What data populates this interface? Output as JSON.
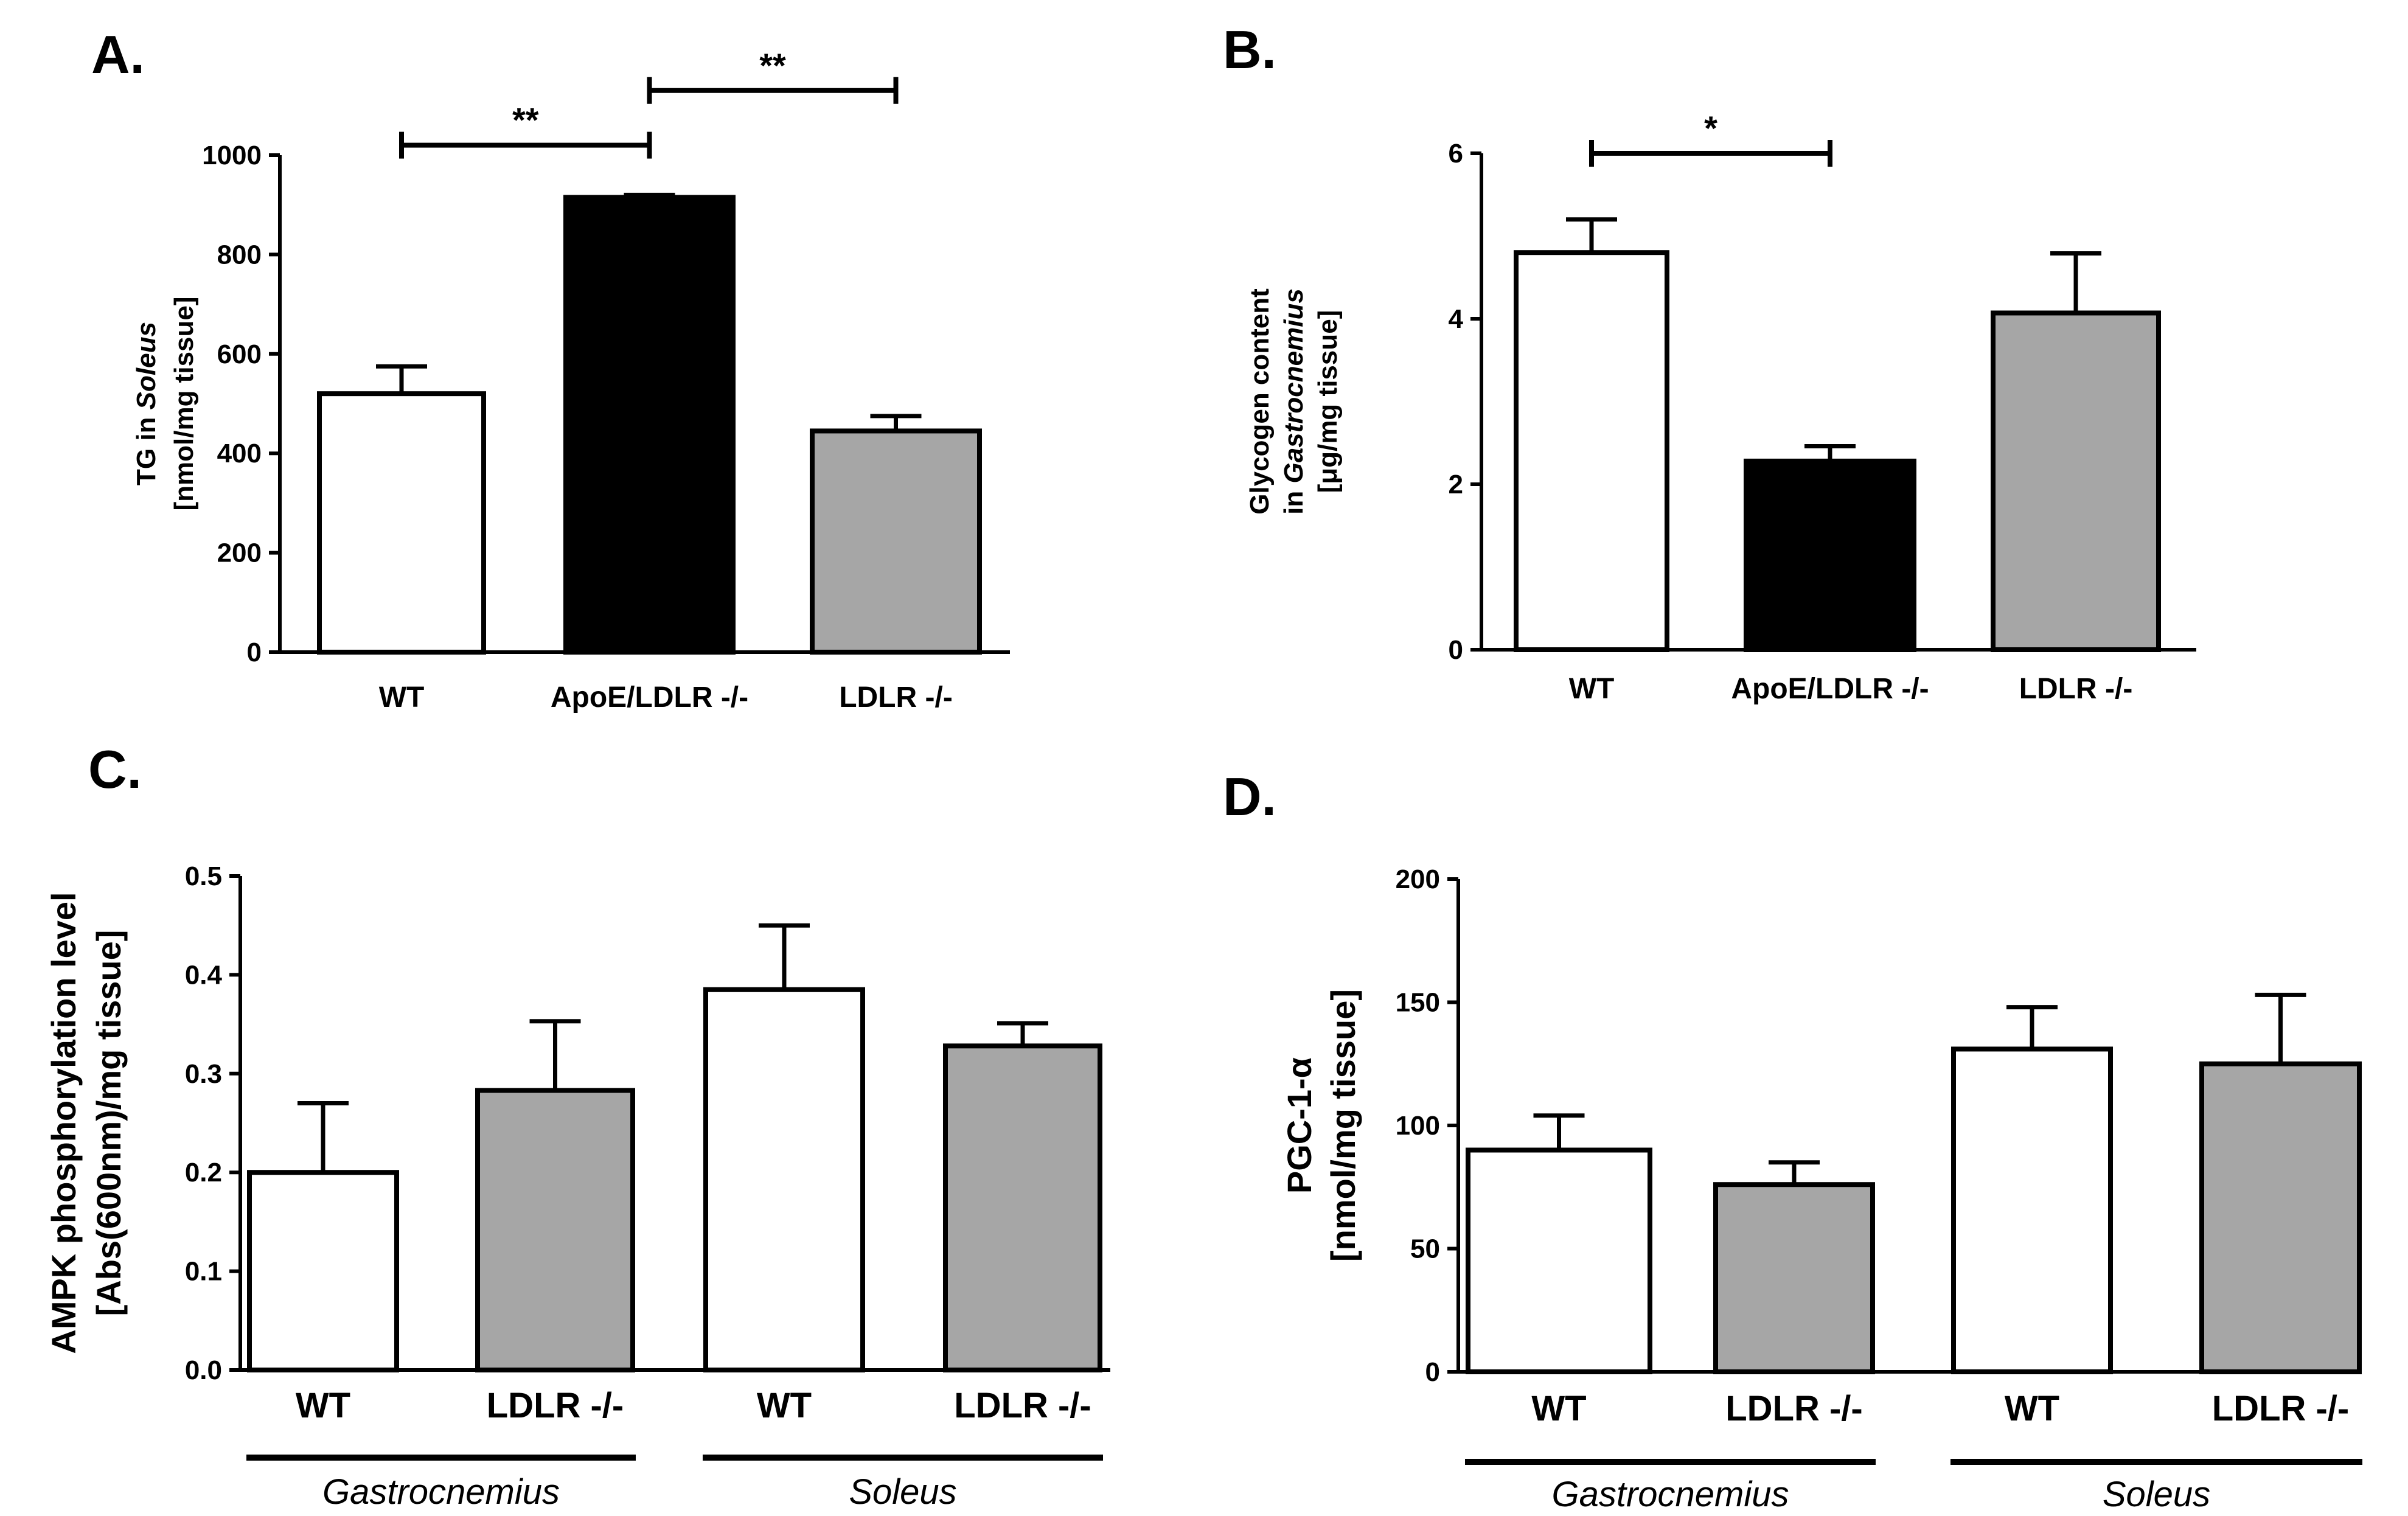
{
  "colors": {
    "white": "#ffffff",
    "black": "#000000",
    "gray": "#a6a6a6"
  },
  "chart_data": [
    {
      "id": "A",
      "type": "bar",
      "panel_label": "A.",
      "title": "",
      "ylabel_lines": [
        [
          {
            "t": "TG in "
          },
          {
            "t": "Soleus",
            "i": true
          }
        ],
        [
          {
            "t": "[nmol/mg tissue]"
          }
        ]
      ],
      "categories": [
        "WT",
        "ApoE/LDLR -/-",
        "LDLR -/-"
      ],
      "values": [
        520,
        915,
        445
      ],
      "errors": [
        55,
        5,
        30
      ],
      "fills": [
        "white",
        "black",
        "gray"
      ],
      "ylim": [
        0,
        1000
      ],
      "yticks": [
        0,
        200,
        400,
        600,
        800,
        1000
      ],
      "tick_labels": [
        "0",
        "200",
        "400",
        "600",
        "800",
        "1000"
      ],
      "significance": [
        {
          "from": 0,
          "to": 1,
          "label": "**",
          "y": 1020
        },
        {
          "from": 1,
          "to": 2,
          "label": "**",
          "y": 1130
        }
      ]
    },
    {
      "id": "B",
      "type": "bar",
      "panel_label": "B.",
      "title": "",
      "ylabel_lines": [
        [
          {
            "t": "Glycogen content"
          }
        ],
        [
          {
            "t": "in "
          },
          {
            "t": "Gastrocnemius",
            "i": true
          }
        ],
        [
          {
            "t": "[μg/mg tissue]"
          }
        ]
      ],
      "categories": [
        "WT",
        "ApoE/LDLR -/-",
        "LDLR -/-"
      ],
      "values": [
        4.8,
        2.28,
        4.07
      ],
      "errors": [
        0.4,
        0.18,
        0.72
      ],
      "fills": [
        "white",
        "black",
        "gray"
      ],
      "ylim": [
        0,
        6
      ],
      "yticks": [
        0,
        2,
        4,
        6
      ],
      "tick_labels": [
        "0",
        "2",
        "4",
        "6"
      ],
      "significance": [
        {
          "from": 0,
          "to": 1,
          "label": "*",
          "y": 6.0
        }
      ]
    },
    {
      "id": "C",
      "type": "bar",
      "panel_label": "C.",
      "title": "",
      "ylabel_lines": [
        [
          {
            "t": "AMPK phosphorylation level"
          }
        ],
        [
          {
            "t": "[Abs(600nm)/mg tissue]"
          }
        ]
      ],
      "categories": [
        "WT",
        "LDLR -/-",
        "WT",
        "LDLR -/-"
      ],
      "values": [
        0.2,
        0.283,
        0.385,
        0.328
      ],
      "errors": [
        0.07,
        0.07,
        0.065,
        0.023
      ],
      "fills": [
        "white",
        "gray",
        "white",
        "gray"
      ],
      "ylim": [
        0,
        0.5
      ],
      "yticks": [
        0,
        0.1,
        0.2,
        0.3,
        0.4,
        0.5
      ],
      "tick_labels": [
        "0.0",
        "0.1",
        "0.2",
        "0.3",
        "0.4",
        "0.5"
      ],
      "groups": [
        {
          "label": "Gastrocnemius",
          "from": 0,
          "to": 1
        },
        {
          "label": "Soleus",
          "from": 2,
          "to": 3
        }
      ],
      "significance": []
    },
    {
      "id": "D",
      "type": "bar",
      "panel_label": "D.",
      "title": "",
      "ylabel_lines": [
        [
          {
            "t": "PGC-1-α"
          }
        ],
        [
          {
            "t": "[nmol/mg tissue]"
          }
        ]
      ],
      "categories": [
        "WT",
        "LDLR -/-",
        "WT",
        "LDLR -/-"
      ],
      "values": [
        90,
        76,
        131,
        125
      ],
      "errors": [
        14,
        9,
        17,
        28
      ],
      "fills": [
        "white",
        "gray",
        "white",
        "gray"
      ],
      "ylim": [
        0,
        200
      ],
      "yticks": [
        0,
        50,
        100,
        150,
        200
      ],
      "tick_labels": [
        "0",
        "50",
        "100",
        "150",
        "200"
      ],
      "groups": [
        {
          "label": "Gastrocnemius",
          "from": 0,
          "to": 1
        },
        {
          "label": "Soleus",
          "from": 2,
          "to": 3
        }
      ],
      "significance": []
    }
  ]
}
